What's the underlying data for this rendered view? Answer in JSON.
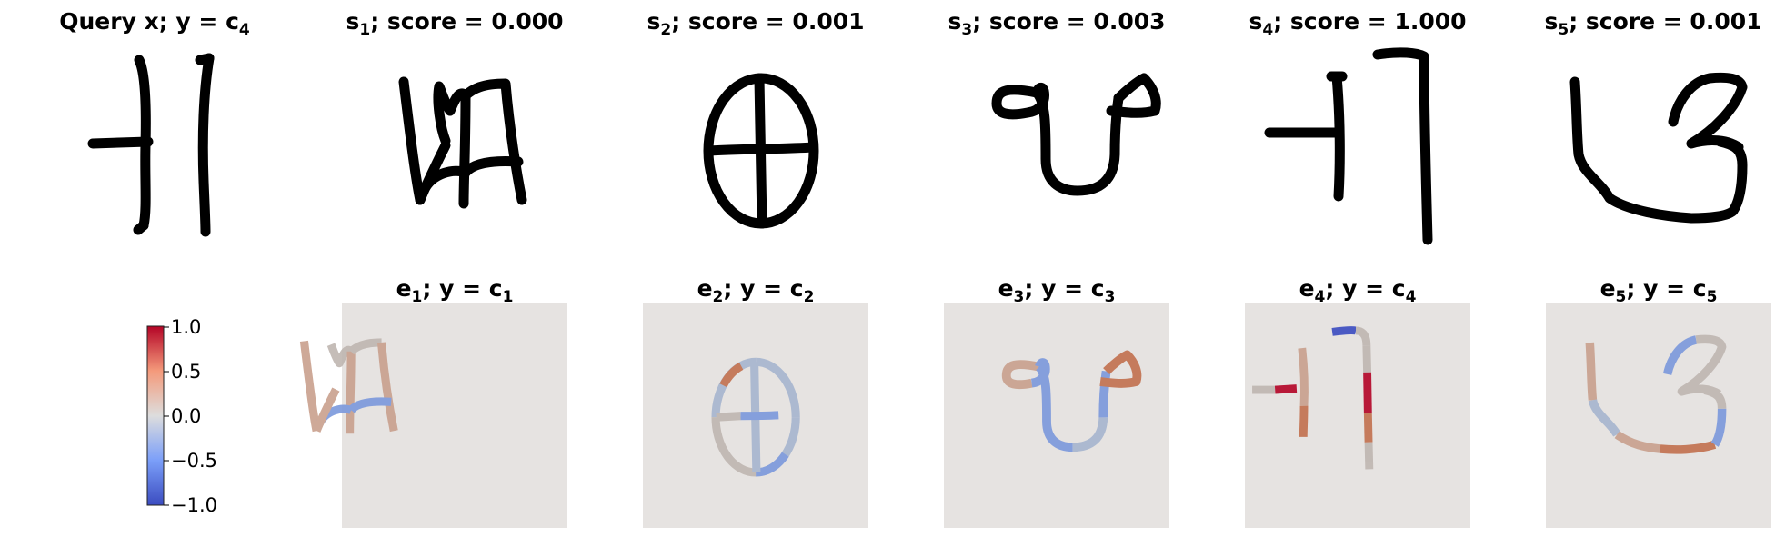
{
  "query": {
    "label": "Query x; ",
    "y": "y = c",
    "sub": "4"
  },
  "top_row": [
    {
      "name": "s",
      "idx": "1",
      "score": "; score = 0.000"
    },
    {
      "name": "s",
      "idx": "2",
      "score": "; score = 0.001"
    },
    {
      "name": "s",
      "idx": "3",
      "score": "; score = 0.003"
    },
    {
      "name": "s",
      "idx": "4",
      "score": "; score = 1.000"
    },
    {
      "name": "s",
      "idx": "5",
      "score": "; score = 0.001"
    }
  ],
  "bottom_row": [
    {
      "name": "e",
      "idx": "1",
      "y": "; y = c",
      "cidx": "1"
    },
    {
      "name": "e",
      "idx": "2",
      "y": "; y = c",
      "cidx": "2"
    },
    {
      "name": "e",
      "idx": "3",
      "y": "; y = c",
      "cidx": "3"
    },
    {
      "name": "e",
      "idx": "4",
      "y": "; y = c",
      "cidx": "4"
    },
    {
      "name": "e",
      "idx": "5",
      "y": "; y = c",
      "cidx": "5"
    }
  ],
  "colorbar": {
    "ticks": [
      "1.0",
      "0.5",
      "0.0",
      "−0.5",
      "−1.0"
    ],
    "colormap": [
      "#3b4cc0",
      "#7b9ff9",
      "#dddddd",
      "#f49a7b",
      "#b40426"
    ]
  },
  "colors": {
    "positive_strong": "#b40426",
    "positive": "#c2704e",
    "positive_weak": "#c9a08d",
    "neutral": "#bfb6b1",
    "negative_weak": "#a6b5cf",
    "negative": "#7b98dc",
    "negative_strong": "#3b4cc0",
    "heatmap_background": "#e6e3e1"
  }
}
